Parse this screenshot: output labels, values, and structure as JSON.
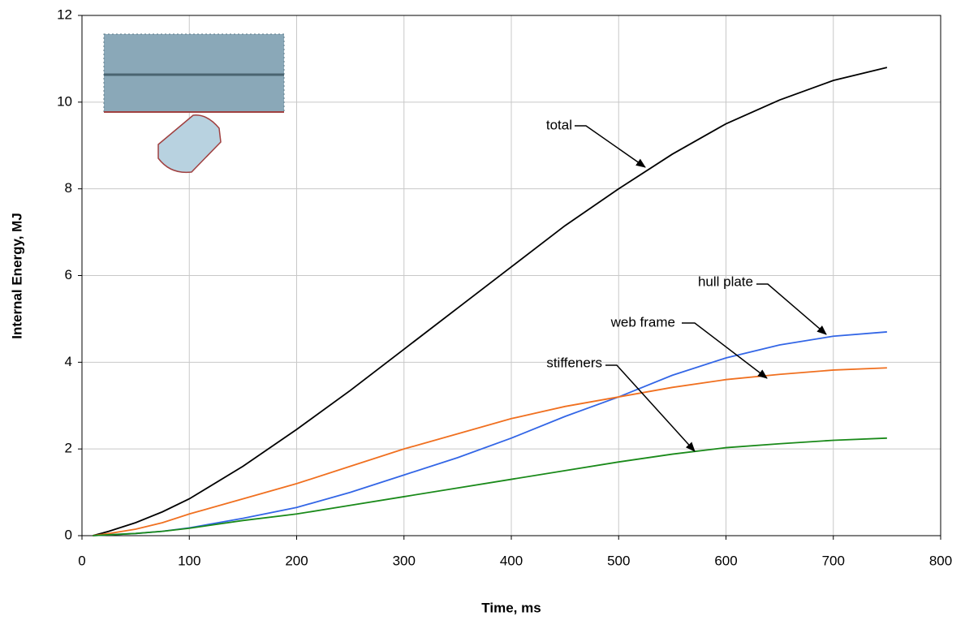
{
  "chart_data": {
    "type": "line",
    "x_label": "Time, ms",
    "y_label": "Internal Energy, MJ",
    "x": [
      10,
      25,
      50,
      75,
      100,
      150,
      200,
      250,
      300,
      350,
      400,
      450,
      500,
      550,
      600,
      650,
      700,
      750
    ],
    "series": [
      {
        "name": "total",
        "color": "#000000",
        "values": [
          0,
          0.1,
          0.3,
          0.55,
          0.85,
          1.6,
          2.45,
          3.35,
          4.3,
          5.25,
          6.2,
          7.15,
          8.0,
          8.8,
          9.5,
          10.05,
          10.5,
          10.8
        ]
      },
      {
        "name": "hull plate",
        "color": "#3366e6",
        "values": [
          0,
          0.02,
          0.05,
          0.1,
          0.18,
          0.4,
          0.65,
          1.0,
          1.4,
          1.8,
          2.25,
          2.75,
          3.2,
          3.7,
          4.1,
          4.4,
          4.6,
          4.7
        ]
      },
      {
        "name": "web frame",
        "color": "#f07020",
        "values": [
          0,
          0.05,
          0.15,
          0.3,
          0.5,
          0.85,
          1.2,
          1.6,
          2.0,
          2.35,
          2.7,
          2.98,
          3.2,
          3.42,
          3.6,
          3.72,
          3.82,
          3.87
        ]
      },
      {
        "name": "stiffeners",
        "color": "#1a8a1a",
        "values": [
          0,
          0.02,
          0.05,
          0.1,
          0.17,
          0.35,
          0.5,
          0.7,
          0.9,
          1.1,
          1.3,
          1.5,
          1.7,
          1.88,
          2.03,
          2.12,
          2.2,
          2.25
        ]
      }
    ],
    "xlim": [
      0,
      800
    ],
    "xticks": [
      0,
      100,
      200,
      300,
      400,
      500,
      600,
      700,
      800
    ],
    "ylim": [
      0,
      12
    ],
    "yticks": [
      0,
      2,
      4,
      6,
      8,
      10,
      12
    ],
    "grid": true
  }
}
